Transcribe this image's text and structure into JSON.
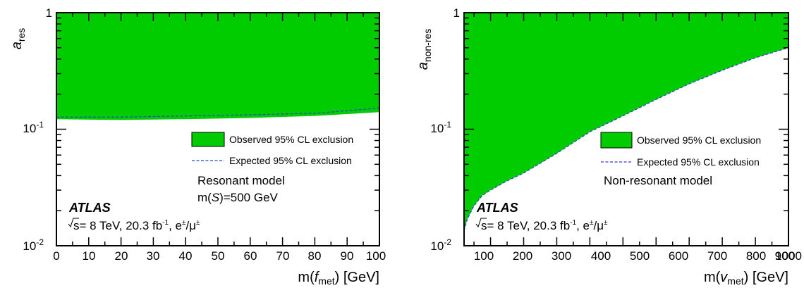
{
  "colors": {
    "observed": "#00cc00",
    "expected": "#2b3fcc"
  },
  "chart_data": [
    {
      "type": "area",
      "log_y": true,
      "xlim": [
        0,
        100
      ],
      "ylim": [
        0.01,
        1
      ],
      "x_ticks": [
        "0",
        "10",
        "20",
        "30",
        "40",
        "50",
        "60",
        "70",
        "80",
        "90",
        "100"
      ],
      "y_ticks": {
        "top": "1",
        "mid_base": "10",
        "mid_exp": "-1",
        "bot_base": "10",
        "bot_exp": "-2"
      },
      "ylabel": {
        "main": "a",
        "sub": "res"
      },
      "xlabel": {
        "pre": "m(",
        "italic": "f",
        "sub": "met",
        "post": ") [GeV]"
      },
      "series": [
        {
          "name": "Observed 95% CL exclusion",
          "style": "filled",
          "x": [
            0,
            20,
            40,
            60,
            80,
            100
          ],
          "y": [
            0.122,
            0.12,
            0.122,
            0.125,
            0.13,
            0.14
          ]
        },
        {
          "name": "Expected 95% CL exclusion",
          "style": "dashed",
          "x": [
            0,
            20,
            40,
            60,
            80,
            100
          ],
          "y": [
            0.127,
            0.127,
            0.13,
            0.133,
            0.137,
            0.152
          ]
        }
      ],
      "model_line1": "Resonant model",
      "model_line2": {
        "pre": "m(",
        "italic": "S",
        "post": ")=500 GeV"
      },
      "atlas": "ATLAS",
      "energy": {
        "pre": "s= 8 TeV, 20.3 fb",
        "sup": "-1",
        "post": ", e",
        "pm1": "±",
        "slash": "/μ",
        "pm2": "±"
      },
      "legend_position": "right"
    },
    {
      "type": "area",
      "log_y": true,
      "xlim": [
        20,
        1000
      ],
      "ylim": [
        0.01,
        1
      ],
      "x_ticks": [
        "100",
        "200",
        "300",
        "400",
        "500",
        "600",
        "700",
        "800",
        "900",
        "1000"
      ],
      "y_ticks": {
        "top": "1",
        "mid_base": "10",
        "mid_exp": "-1",
        "bot_base": "10",
        "bot_exp": "-2"
      },
      "ylabel": {
        "main": "a",
        "sub": "non-res"
      },
      "xlabel": {
        "pre": "m(",
        "italic": "v",
        "sub": "met",
        "post": ") [GeV]"
      },
      "series": [
        {
          "name": "Observed 95% CL exclusion",
          "style": "filled",
          "x": [
            20,
            30,
            50,
            75,
            100,
            150,
            200,
            300,
            400,
            500,
            600,
            700,
            800,
            900,
            1000
          ],
          "y": [
            0.0135,
            0.017,
            0.022,
            0.027,
            0.03,
            0.036,
            0.042,
            0.062,
            0.095,
            0.13,
            0.18,
            0.245,
            0.32,
            0.41,
            0.5
          ]
        },
        {
          "name": "Expected 95% CL exclusion",
          "style": "dashed",
          "x": [
            20,
            30,
            50,
            75,
            100,
            150,
            200,
            300,
            400,
            500,
            600,
            700,
            800,
            900,
            1000
          ],
          "y": [
            0.0135,
            0.017,
            0.022,
            0.027,
            0.03,
            0.036,
            0.042,
            0.062,
            0.095,
            0.13,
            0.18,
            0.245,
            0.32,
            0.41,
            0.5
          ]
        }
      ],
      "model_line1": "Non-resonant model",
      "atlas": "ATLAS",
      "energy": {
        "pre": "s= 8 TeV, 20.3 fb",
        "sup": "-1",
        "post": ", e",
        "pm1": "±",
        "slash": "/μ",
        "pm2": "±"
      },
      "legend_position": "right"
    }
  ]
}
